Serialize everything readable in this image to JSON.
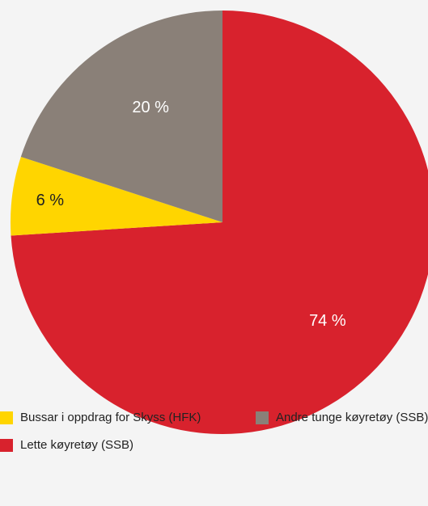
{
  "chart_data": {
    "type": "pie",
    "title": "",
    "slices": [
      {
        "label": "Lette køyretøy (SSB)",
        "value": 74,
        "display": "74 %",
        "color": "#d8222d"
      },
      {
        "label": "Bussar i oppdrag for Skyss (HFK)",
        "value": 6,
        "display": "6 %",
        "color": "#ffd500"
      },
      {
        "label": "Andre tunge køyretøy (SSB)",
        "value": 20,
        "display": "20 %",
        "color": "#8a8078"
      }
    ],
    "legend": {
      "placement": "bottom",
      "order": [
        1,
        2,
        0
      ]
    }
  },
  "label_color": "#ffffff",
  "background_color": "#f4f4f4"
}
